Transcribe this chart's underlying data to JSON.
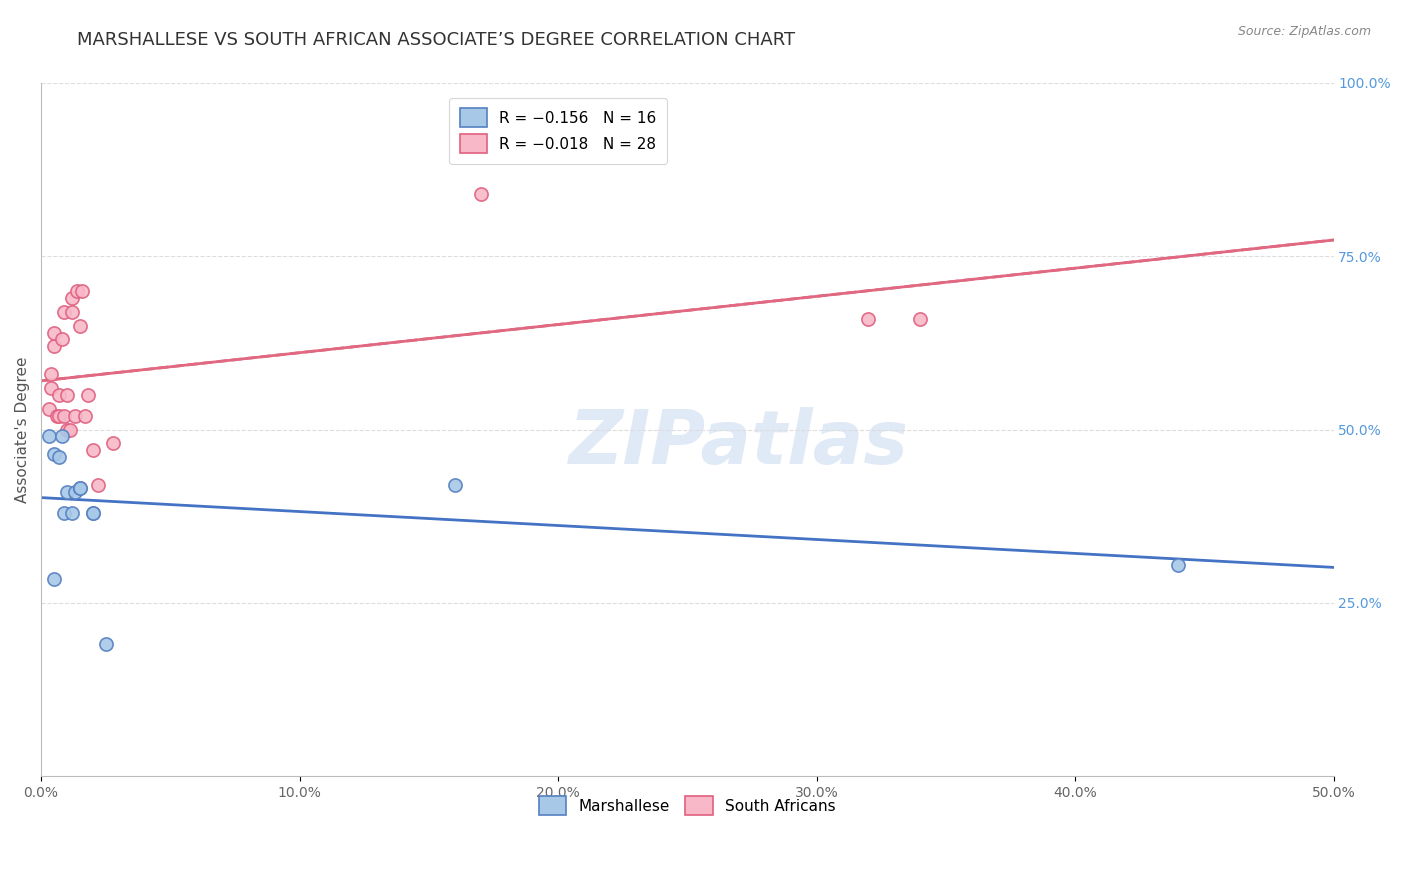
{
  "title": "MARSHALLESE VS SOUTH AFRICAN ASSOCIATE’S DEGREE CORRELATION CHART",
  "source": "Source: ZipAtlas.com",
  "ylabel": "Associate's Degree",
  "right_yticks": [
    "100.0%",
    "75.0%",
    "50.0%",
    "25.0%"
  ],
  "right_ytick_vals": [
    1.0,
    0.75,
    0.5,
    0.25
  ],
  "xtick_positions": [
    0.0,
    0.1,
    0.2,
    0.3,
    0.4,
    0.5
  ],
  "xtick_labels": [
    "0.0%",
    "10.0%",
    "20.0%",
    "30.0%",
    "40.0%",
    "50.0%"
  ],
  "xlim": [
    0.0,
    0.5
  ],
  "ylim": [
    0.0,
    1.0
  ],
  "watermark": "ZIPatlas",
  "legend_top": [
    {
      "label": "R = −0.156   N = 16",
      "facecolor": "#a8c8e8",
      "edgecolor": "#5580c0"
    },
    {
      "label": "R = −0.018   N = 28",
      "facecolor": "#f8b8c8",
      "edgecolor": "#e06080"
    }
  ],
  "legend_bottom": [
    {
      "label": "Marshallese",
      "facecolor": "#a8c8e8",
      "edgecolor": "#5580c0"
    },
    {
      "label": "South Africans",
      "facecolor": "#f8b8c8",
      "edgecolor": "#e06080"
    }
  ],
  "marshallese_color": "#a8c8e8",
  "marshallese_edge": "#5580c0",
  "south_african_color": "#f8b8c8",
  "south_african_edge": "#e06080",
  "trendline_blue": "#4472c4",
  "trendline_pink": "#e06880",
  "marshallese_x": [
    0.003,
    0.005,
    0.005,
    0.007,
    0.008,
    0.009,
    0.01,
    0.012,
    0.013,
    0.015,
    0.015,
    0.02,
    0.02,
    0.025,
    0.16,
    0.44
  ],
  "marshallese_y": [
    0.49,
    0.285,
    0.465,
    0.46,
    0.49,
    0.38,
    0.41,
    0.38,
    0.41,
    0.415,
    0.415,
    0.38,
    0.38,
    0.19,
    0.42,
    0.305
  ],
  "south_african_x": [
    0.003,
    0.004,
    0.004,
    0.005,
    0.005,
    0.006,
    0.007,
    0.007,
    0.008,
    0.009,
    0.009,
    0.01,
    0.01,
    0.011,
    0.012,
    0.012,
    0.013,
    0.014,
    0.015,
    0.016,
    0.017,
    0.018,
    0.02,
    0.022,
    0.028,
    0.17,
    0.32,
    0.34
  ],
  "south_african_y": [
    0.53,
    0.56,
    0.58,
    0.62,
    0.64,
    0.52,
    0.52,
    0.55,
    0.63,
    0.52,
    0.67,
    0.5,
    0.55,
    0.5,
    0.69,
    0.67,
    0.52,
    0.7,
    0.65,
    0.7,
    0.52,
    0.55,
    0.47,
    0.42,
    0.48,
    0.84,
    0.66,
    0.66
  ],
  "grid_color": "#dddddd",
  "background_color": "#ffffff",
  "title_fontsize": 13,
  "axis_label_fontsize": 11,
  "tick_fontsize": 10,
  "marker_size": 90
}
